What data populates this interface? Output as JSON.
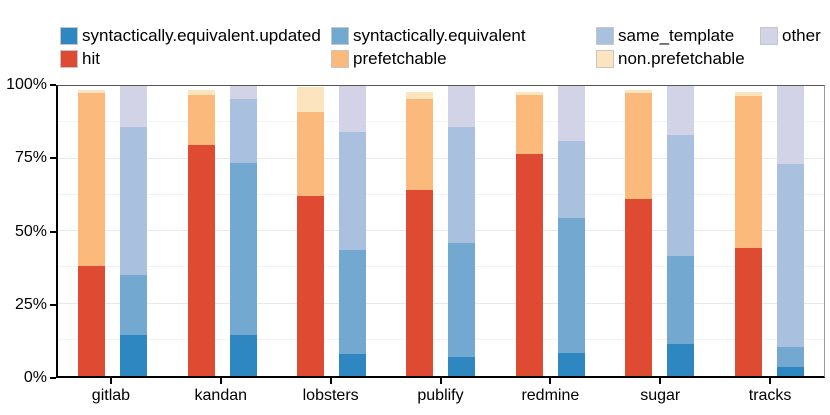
{
  "legend": {
    "items": [
      {
        "label": "syntactically.equivalent.updated",
        "color": "#2E87C1",
        "row": 1,
        "col": 1
      },
      {
        "label": "hit",
        "color": "#DE4A32",
        "row": 2,
        "col": 1
      },
      {
        "label": "syntactically.equivalent",
        "color": "#73A9D1",
        "row": 1,
        "col": 2
      },
      {
        "label": "prefetchable",
        "color": "#FBB97C",
        "row": 2,
        "col": 2
      },
      {
        "label": "same_template",
        "color": "#A9C0DE",
        "row": 1,
        "col": 3
      },
      {
        "label": "non.prefetchable",
        "color": "#FCE4BE",
        "row": 2,
        "col": 3
      },
      {
        "label": "other",
        "color": "#D2D3E7",
        "row": 1,
        "col": 4
      }
    ]
  },
  "axes": {
    "y_tick_labels": [
      "0%",
      "25%",
      "50%",
      "75%",
      "100%"
    ],
    "y_tick_values": [
      0,
      25,
      50,
      75,
      100
    ]
  },
  "chart_data": {
    "type": "bar",
    "stacked": true,
    "orientation": "vertical",
    "title": "",
    "xlabel": "",
    "ylabel": "",
    "ylim": [
      0,
      100
    ],
    "y_unit": "percent",
    "legend_position": "top",
    "grid": {
      "horizontal_step_percent": 12.5,
      "on": true
    },
    "categories": [
      "gitlab",
      "kandan",
      "lobsters",
      "publify",
      "redmine",
      "sugar",
      "tracks"
    ],
    "groups_per_category": 2,
    "stacks": [
      {
        "name": "prefetch-outcome",
        "series": [
          {
            "name": "hit",
            "color": "#DE4A32",
            "values": [
              38,
              79.5,
              62,
              64,
              76.5,
              61,
              44
            ]
          },
          {
            "name": "prefetchable",
            "color": "#FBB97C",
            "values": [
              59.5,
              17.5,
              29,
              31.5,
              20.5,
              36.5,
              52.5
            ]
          },
          {
            "name": "non.prefetchable",
            "color": "#FCE4BE",
            "values": [
              1,
              1.5,
              8.5,
              2.5,
              1,
              1,
              1.5
            ]
          }
        ]
      },
      {
        "name": "equivalence",
        "series": [
          {
            "name": "syntactically.equivalent.updated",
            "color": "#2E87C1",
            "values": [
              14,
              14,
              7.5,
              6.5,
              8,
              11,
              3
            ]
          },
          {
            "name": "syntactically.equivalent",
            "color": "#73A9D1",
            "values": [
              21,
              59.5,
              36,
              39.5,
              46.5,
              30.5,
              7
            ]
          },
          {
            "name": "same_template",
            "color": "#A9C0DE",
            "values": [
              51,
              22,
              40.5,
              40,
              26.5,
              41.5,
              63
            ]
          },
          {
            "name": "other",
            "color": "#D2D3E7",
            "values": [
              14,
              4.5,
              16,
              14,
              19,
              17,
              27
            ]
          }
        ]
      }
    ]
  }
}
